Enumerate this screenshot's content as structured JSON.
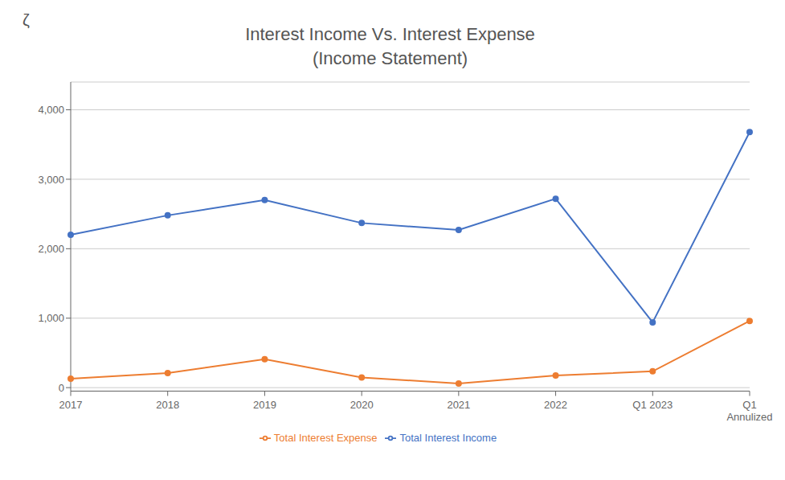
{
  "chart_data": {
    "type": "line",
    "title": "Interest Income Vs. Interest Expense",
    "subtitle": "(Income Statement)",
    "annotations": [
      "ζ"
    ],
    "categories": [
      "2017",
      "2018",
      "2019",
      "2020",
      "2021",
      "2022",
      "Q1 2023",
      "Q1\nAnnulized"
    ],
    "series": [
      {
        "name": "Total Interest Income",
        "color": "#4472C4",
        "values": [
          2200,
          2480,
          2700,
          2370,
          2270,
          2720,
          940,
          3680
        ]
      },
      {
        "name": "Total Interest Expense",
        "color": "#ED7D31",
        "values": [
          130,
          210,
          410,
          145,
          60,
          175,
          235,
          960
        ]
      }
    ],
    "ylim": [
      -50,
      4400
    ],
    "yticks": [
      0,
      {
        "value": 1000,
        "label": "1,000"
      },
      {
        "value": 2000,
        "label": "2,000"
      },
      {
        "value": 3000,
        "label": "3,000"
      },
      {
        "value": 4000,
        "label": "4,000"
      }
    ],
    "grid": true,
    "legend": "bottom",
    "marker": "circle"
  }
}
